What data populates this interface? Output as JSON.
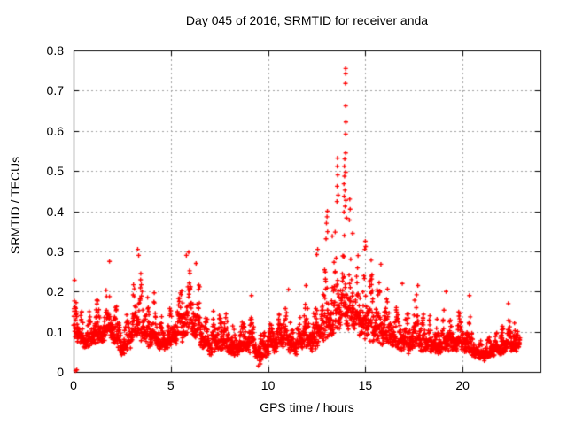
{
  "chart_data": {
    "type": "scatter",
    "title": "Day 045 of 2016, SRMTID for receiver anda",
    "xlabel": "GPS time / hours",
    "ylabel": "SRMTID / TECUs",
    "xlim": [
      0,
      24
    ],
    "ylim": [
      0,
      0.8
    ],
    "xticks": [
      {
        "label": "0",
        "value": 0
      },
      {
        "label": "5",
        "value": 5
      },
      {
        "label": "10",
        "value": 10
      },
      {
        "label": "15",
        "value": 15
      },
      {
        "label": "20",
        "value": 20
      }
    ],
    "yticks": [
      {
        "label": "0",
        "value": 0
      },
      {
        "label": "0.1",
        "value": 0.1
      },
      {
        "label": "0.2",
        "value": 0.2
      },
      {
        "label": "0.3",
        "value": 0.3
      },
      {
        "label": "0.4",
        "value": 0.4
      },
      {
        "label": "0.5",
        "value": 0.5
      },
      {
        "label": "0.6",
        "value": 0.6
      },
      {
        "label": "0.7",
        "value": 0.7
      },
      {
        "label": "0.8",
        "value": 0.8
      }
    ],
    "grid": true,
    "grid_style": "dotted",
    "legend": "none",
    "marker": "plus",
    "marker_size_px": 5,
    "marker_color": "#ff0000",
    "grid_color": "#a0a0a0",
    "border_color": "#000000",
    "background": "#ffffff",
    "text_color": "#000000",
    "series": [
      {
        "name": "SRMTID",
        "x_start": 0.0,
        "x_end": 22.95,
        "sampling_interval_hours": 0.0083333,
        "seed": 2016045,
        "envelope_nodes": [
          [
            0.0,
            0.09,
            0.225
          ],
          [
            0.3,
            0.07,
            0.19
          ],
          [
            0.6,
            0.05,
            0.15
          ],
          [
            0.9,
            0.06,
            0.17
          ],
          [
            1.2,
            0.07,
            0.21
          ],
          [
            1.5,
            0.07,
            0.19
          ],
          [
            1.85,
            0.08,
            0.27
          ],
          [
            2.2,
            0.06,
            0.23
          ],
          [
            2.5,
            0.04,
            0.12
          ],
          [
            2.8,
            0.05,
            0.17
          ],
          [
            3.1,
            0.07,
            0.24
          ],
          [
            3.35,
            0.08,
            0.3
          ],
          [
            3.6,
            0.07,
            0.23
          ],
          [
            3.9,
            0.06,
            0.22
          ],
          [
            4.2,
            0.06,
            0.2
          ],
          [
            4.5,
            0.05,
            0.15
          ],
          [
            4.8,
            0.05,
            0.15
          ],
          [
            5.1,
            0.06,
            0.2
          ],
          [
            5.45,
            0.07,
            0.24
          ],
          [
            5.8,
            0.08,
            0.29
          ],
          [
            6.1,
            0.08,
            0.27
          ],
          [
            6.4,
            0.07,
            0.26
          ],
          [
            6.7,
            0.05,
            0.18
          ],
          [
            7.0,
            0.04,
            0.13
          ],
          [
            7.3,
            0.05,
            0.17
          ],
          [
            7.6,
            0.05,
            0.18
          ],
          [
            7.9,
            0.04,
            0.17
          ],
          [
            8.2,
            0.04,
            0.12
          ],
          [
            8.5,
            0.04,
            0.12
          ],
          [
            8.8,
            0.05,
            0.15
          ],
          [
            9.1,
            0.05,
            0.17
          ],
          [
            9.45,
            0.02,
            0.12
          ],
          [
            9.75,
            0.03,
            0.12
          ],
          [
            10.1,
            0.05,
            0.17
          ],
          [
            10.45,
            0.05,
            0.16
          ],
          [
            10.75,
            0.06,
            0.19
          ],
          [
            11.05,
            0.05,
            0.2
          ],
          [
            11.35,
            0.04,
            0.13
          ],
          [
            11.65,
            0.05,
            0.17
          ],
          [
            11.95,
            0.06,
            0.21
          ],
          [
            12.25,
            0.05,
            0.15
          ],
          [
            12.55,
            0.06,
            0.23
          ],
          [
            12.85,
            0.07,
            0.26
          ],
          [
            13.15,
            0.08,
            0.29
          ],
          [
            13.45,
            0.09,
            0.31
          ],
          [
            13.75,
            0.1,
            0.36
          ],
          [
            14.0,
            0.1,
            0.38
          ],
          [
            14.25,
            0.1,
            0.34
          ],
          [
            14.55,
            0.09,
            0.31
          ],
          [
            14.85,
            0.08,
            0.3
          ],
          [
            15.15,
            0.08,
            0.29
          ],
          [
            15.45,
            0.07,
            0.26
          ],
          [
            15.75,
            0.07,
            0.26
          ],
          [
            16.05,
            0.06,
            0.23
          ],
          [
            16.35,
            0.06,
            0.22
          ],
          [
            16.65,
            0.05,
            0.17
          ],
          [
            16.95,
            0.05,
            0.2
          ],
          [
            17.25,
            0.05,
            0.16
          ],
          [
            17.55,
            0.06,
            0.22
          ],
          [
            17.85,
            0.05,
            0.19
          ],
          [
            18.15,
            0.05,
            0.17
          ],
          [
            18.45,
            0.05,
            0.15
          ],
          [
            18.75,
            0.04,
            0.14
          ],
          [
            19.05,
            0.05,
            0.18
          ],
          [
            19.35,
            0.05,
            0.16
          ],
          [
            19.65,
            0.05,
            0.15
          ],
          [
            19.95,
            0.05,
            0.17
          ],
          [
            20.25,
            0.05,
            0.17
          ],
          [
            20.55,
            0.04,
            0.12
          ],
          [
            20.85,
            0.03,
            0.1
          ],
          [
            21.15,
            0.03,
            0.09
          ],
          [
            21.45,
            0.04,
            0.1
          ],
          [
            21.75,
            0.04,
            0.12
          ],
          [
            22.05,
            0.04,
            0.13
          ],
          [
            22.35,
            0.05,
            0.16
          ],
          [
            22.65,
            0.05,
            0.13
          ],
          [
            22.95,
            0.06,
            0.14
          ]
        ],
        "peak_points": [
          [
            13.99,
            0.755
          ],
          [
            13.99,
            0.742
          ],
          [
            13.98,
            0.718
          ],
          [
            13.99,
            0.662
          ],
          [
            14.0,
            0.622
          ],
          [
            13.99,
            0.592
          ],
          [
            13.99,
            0.545
          ],
          [
            13.94,
            0.53
          ],
          [
            13.92,
            0.512
          ],
          [
            13.99,
            0.497
          ],
          [
            13.93,
            0.487
          ],
          [
            13.9,
            0.468
          ],
          [
            13.95,
            0.452
          ],
          [
            13.91,
            0.437
          ],
          [
            14.0,
            0.427
          ],
          [
            13.96,
            0.412
          ],
          [
            13.9,
            0.398
          ],
          [
            14.03,
            0.383
          ],
          [
            13.57,
            0.532
          ],
          [
            13.56,
            0.512
          ],
          [
            13.58,
            0.49
          ],
          [
            13.55,
            0.462
          ],
          [
            13.6,
            0.44
          ],
          [
            13.54,
            0.424
          ],
          [
            14.2,
            0.43
          ],
          [
            14.22,
            0.405
          ],
          [
            14.18,
            0.378
          ],
          [
            14.35,
            0.345
          ],
          [
            13.05,
            0.4
          ],
          [
            13.03,
            0.386
          ],
          [
            13.0,
            0.37
          ],
          [
            13.06,
            0.349
          ],
          [
            12.98,
            0.331
          ],
          [
            13.45,
            0.348
          ],
          [
            13.3,
            0.338
          ],
          [
            15.0,
            0.325
          ],
          [
            15.02,
            0.312
          ],
          [
            14.97,
            0.305
          ],
          [
            15.3,
            0.278
          ],
          [
            15.8,
            0.268
          ],
          [
            12.55,
            0.305
          ],
          [
            12.5,
            0.292
          ],
          [
            5.8,
            0.29
          ],
          [
            5.92,
            0.298
          ],
          [
            3.3,
            0.305
          ],
          [
            3.35,
            0.29
          ],
          [
            1.85,
            0.275
          ],
          [
            6.3,
            0.27
          ],
          [
            16.9,
            0.22
          ],
          [
            17.7,
            0.215
          ],
          [
            19.15,
            0.2
          ],
          [
            20.35,
            0.19
          ],
          [
            22.35,
            0.17
          ],
          [
            11.95,
            0.215
          ],
          [
            11.05,
            0.205
          ],
          [
            0.05,
            0.228
          ],
          [
            9.15,
            0.19
          ]
        ],
        "low_points": [
          [
            0.1,
            0.003
          ],
          [
            0.17,
            0.005
          ],
          [
            9.5,
            0.015
          ],
          [
            9.6,
            0.02
          ],
          [
            9.55,
            0.028
          ]
        ]
      }
    ]
  }
}
